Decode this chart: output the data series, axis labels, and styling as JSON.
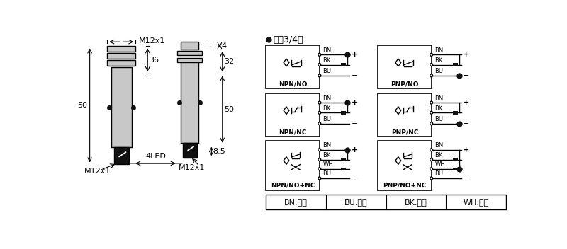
{
  "bg_color": "#ffffff",
  "lc": "#000000",
  "gray": "#c8c8c8",
  "dark": "#111111",
  "title": "直涁3/4线",
  "color_legend": [
    {
      "code": "BN",
      "name": "棕色"
    },
    {
      "code": "BU",
      "name": "兰色"
    },
    {
      "code": "BK",
      "name": "黑色"
    },
    {
      "code": "WH",
      "name": "白色"
    }
  ]
}
